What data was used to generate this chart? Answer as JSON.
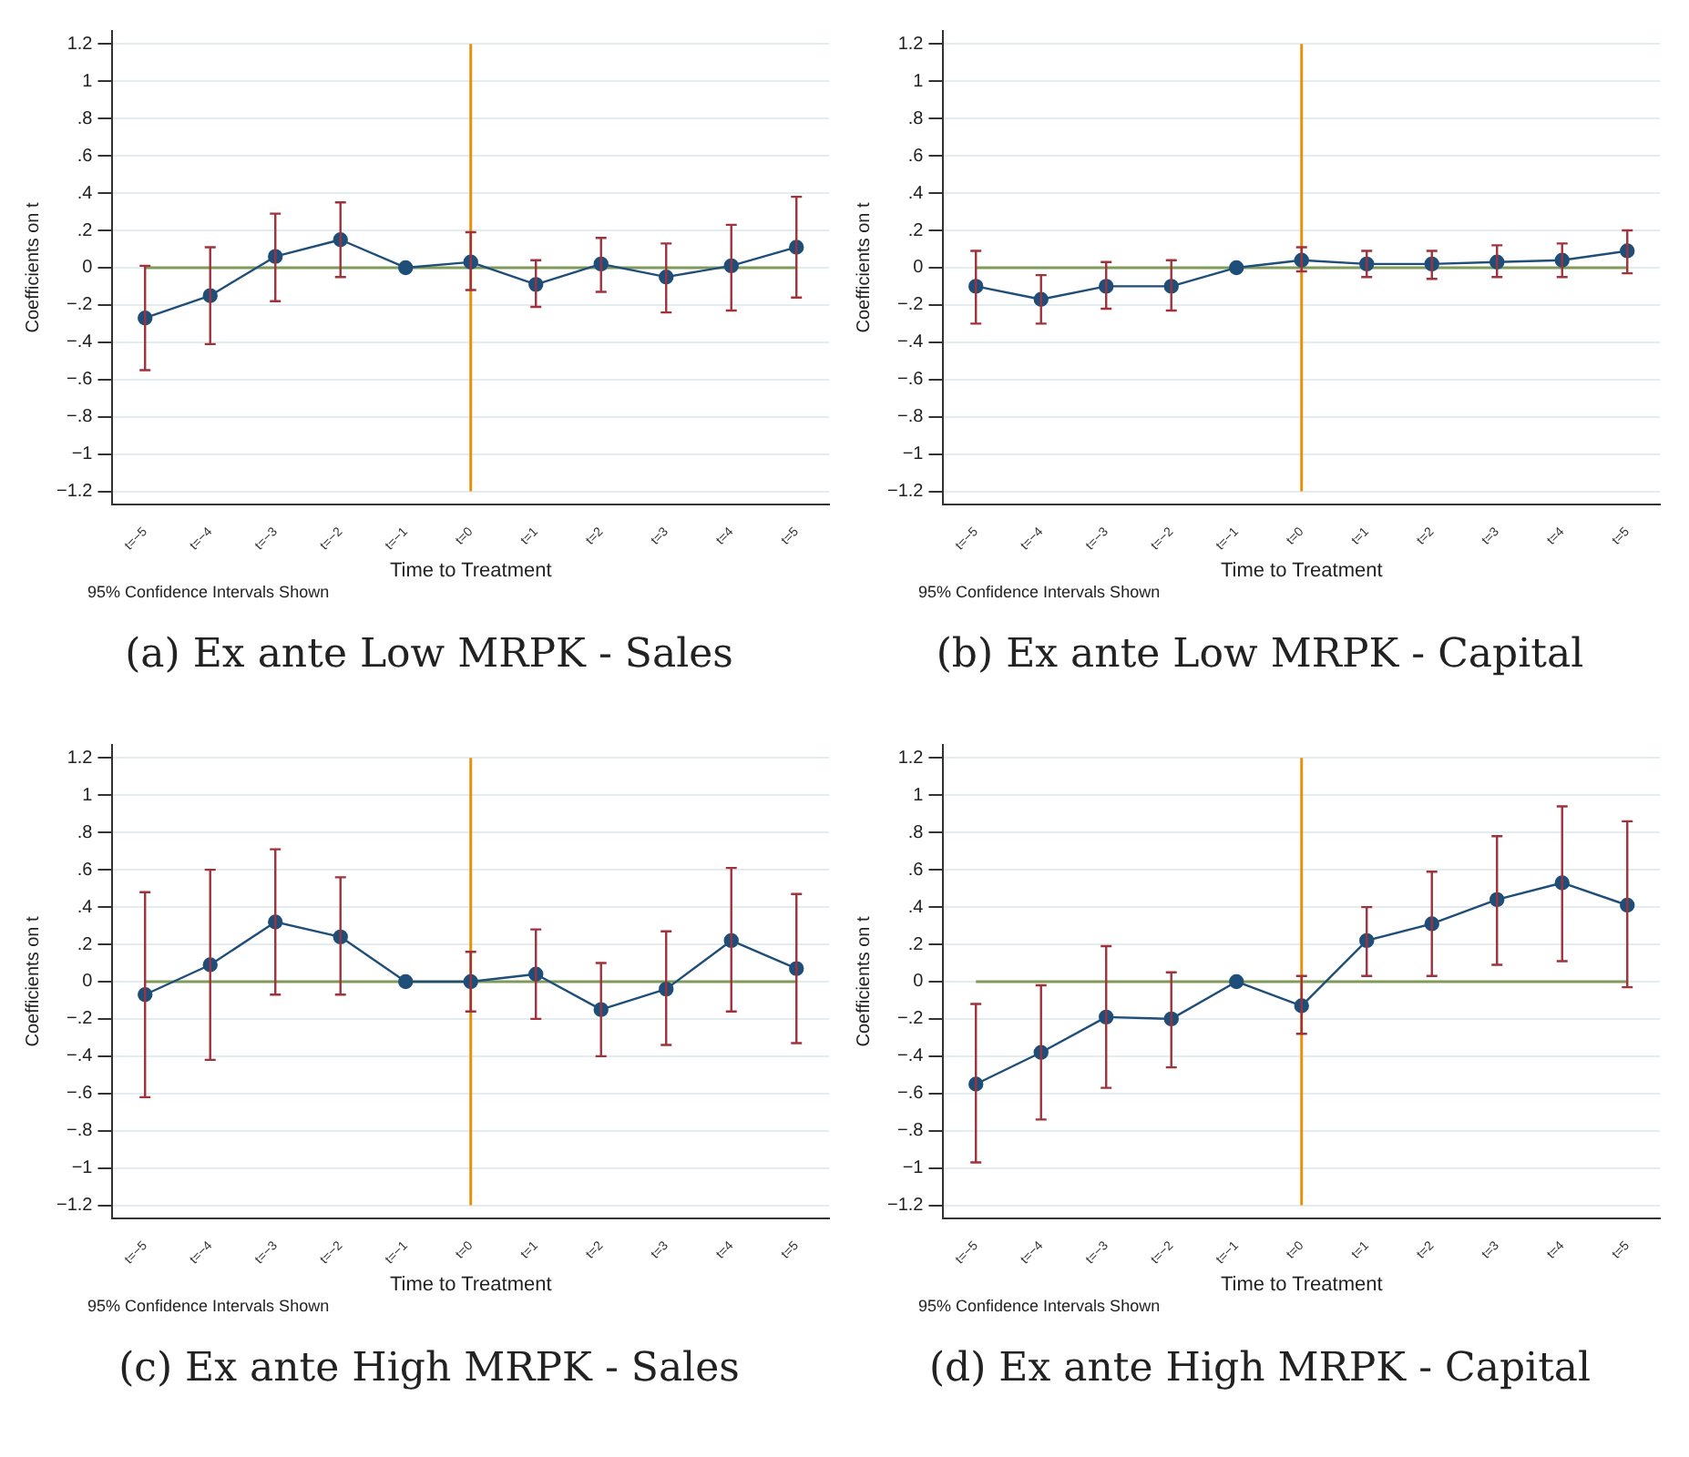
{
  "chart_data": [
    {
      "type": "line",
      "title": "(a) Ex ante Low MRPK - Sales",
      "xlabel": "Time to Treatment",
      "ylabel": "Coefficients on t",
      "annotations": [
        "95% Confidence Intervals Shown"
      ],
      "categories": [
        "t=−5",
        "t=−4",
        "t=−3",
        "t=−2",
        "t=−1",
        "t=0",
        "t=1",
        "t=2",
        "t=3",
        "t=4",
        "t=5"
      ],
      "series": [
        {
          "color": "#1f4e79",
          "values": [
            -0.27,
            -0.15,
            0.06,
            0.15,
            0,
            0.03,
            -0.09,
            0.02,
            -0.05,
            0.01,
            0.11
          ],
          "errors": [
            [
              -0.55,
              0.01
            ],
            [
              -0.41,
              0.11
            ],
            [
              -0.18,
              0.29
            ],
            [
              -0.05,
              0.35
            ],
            null,
            [
              -0.12,
              0.19
            ],
            [
              -0.21,
              0.04
            ],
            [
              -0.13,
              0.16
            ],
            [
              -0.24,
              0.13
            ],
            [
              -0.23,
              0.23
            ],
            [
              -0.16,
              0.38
            ]
          ]
        }
      ],
      "ylim": [
        -1.27,
        1.27
      ],
      "yticks": [
        {
          "value": -1.2,
          "label": "−1.2"
        },
        {
          "value": -1,
          "label": "−1"
        },
        {
          "value": -0.8,
          "label": "−.8"
        },
        {
          "value": -0.6,
          "label": "−.6"
        },
        {
          "value": -0.4,
          "label": "−.4"
        },
        {
          "value": -0.2,
          "label": "−.2"
        },
        0,
        {
          "value": 0.2,
          "label": ".2"
        },
        {
          "value": 0.4,
          "label": ".4"
        },
        {
          "value": 0.6,
          "label": ".6"
        },
        {
          "value": 0.8,
          "label": ".8"
        },
        1,
        1.2
      ],
      "ref_lines": [
        {
          "axis": "y",
          "value": 0,
          "color": "#7f9a5a"
        },
        {
          "axis": "x",
          "value": "t=0",
          "color": "#e8900c"
        }
      ],
      "grid": "y",
      "legend": false,
      "marker": "circle"
    },
    {
      "type": "line",
      "title": "(b) Ex ante Low MRPK - Capital",
      "xlabel": "Time to Treatment",
      "ylabel": "Coefficients on t",
      "annotations": [
        "95% Confidence Intervals Shown"
      ],
      "categories": [
        "t=−5",
        "t=−4",
        "t=−3",
        "t=−2",
        "t=−1",
        "t=0",
        "t=1",
        "t=2",
        "t=3",
        "t=4",
        "t=5"
      ],
      "series": [
        {
          "color": "#1f4e79",
          "values": [
            -0.1,
            -0.17,
            -0.1,
            -0.1,
            0,
            0.04,
            0.02,
            0.02,
            0.03,
            0.04,
            0.09
          ],
          "errors": [
            [
              -0.3,
              0.09
            ],
            [
              -0.3,
              -0.04
            ],
            [
              -0.22,
              0.03
            ],
            [
              -0.23,
              0.04
            ],
            null,
            [
              -0.02,
              0.11
            ],
            [
              -0.05,
              0.09
            ],
            [
              -0.06,
              0.09
            ],
            [
              -0.05,
              0.12
            ],
            [
              -0.05,
              0.13
            ],
            [
              -0.03,
              0.2
            ]
          ]
        }
      ],
      "ylim": [
        -1.27,
        1.27
      ],
      "yticks": [
        {
          "value": -1.2,
          "label": "−1.2"
        },
        {
          "value": -1,
          "label": "−1"
        },
        {
          "value": -0.8,
          "label": "−.8"
        },
        {
          "value": -0.6,
          "label": "−.6"
        },
        {
          "value": -0.4,
          "label": "−.4"
        },
        {
          "value": -0.2,
          "label": "−.2"
        },
        0,
        {
          "value": 0.2,
          "label": ".2"
        },
        {
          "value": 0.4,
          "label": ".4"
        },
        {
          "value": 0.6,
          "label": ".6"
        },
        {
          "value": 0.8,
          "label": ".8"
        },
        1,
        1.2
      ],
      "ref_lines": [
        {
          "axis": "y",
          "value": 0,
          "color": "#7f9a5a"
        },
        {
          "axis": "x",
          "value": "t=0",
          "color": "#e8900c"
        }
      ],
      "grid": "y",
      "legend": false,
      "marker": "circle"
    },
    {
      "type": "line",
      "title": "(c) Ex ante High MRPK - Sales",
      "xlabel": "Time to Treatment",
      "ylabel": "Coefficients on t",
      "annotations": [
        "95% Confidence Intervals Shown"
      ],
      "categories": [
        "t=−5",
        "t=−4",
        "t=−3",
        "t=−2",
        "t=−1",
        "t=0",
        "t=1",
        "t=2",
        "t=3",
        "t=4",
        "t=5"
      ],
      "series": [
        {
          "color": "#1f4e79",
          "values": [
            -0.07,
            0.09,
            0.32,
            0.24,
            0,
            0,
            0.04,
            -0.15,
            -0.04,
            0.22,
            0.07
          ],
          "errors": [
            [
              -0.62,
              0.48
            ],
            [
              -0.42,
              0.6
            ],
            [
              -0.07,
              0.71
            ],
            [
              -0.07,
              0.56
            ],
            null,
            [
              -0.16,
              0.16
            ],
            [
              -0.2,
              0.28
            ],
            [
              -0.4,
              0.1
            ],
            [
              -0.34,
              0.27
            ],
            [
              -0.16,
              0.61
            ],
            [
              -0.33,
              0.47
            ]
          ]
        }
      ],
      "ylim": [
        -1.27,
        1.27
      ],
      "yticks": [
        {
          "value": -1.2,
          "label": "−1.2"
        },
        {
          "value": -1,
          "label": "−1"
        },
        {
          "value": -0.8,
          "label": "−.8"
        },
        {
          "value": -0.6,
          "label": "−.6"
        },
        {
          "value": -0.4,
          "label": "−.4"
        },
        {
          "value": -0.2,
          "label": "−.2"
        },
        0,
        {
          "value": 0.2,
          "label": ".2"
        },
        {
          "value": 0.4,
          "label": ".4"
        },
        {
          "value": 0.6,
          "label": ".6"
        },
        {
          "value": 0.8,
          "label": ".8"
        },
        1,
        1.2
      ],
      "ref_lines": [
        {
          "axis": "y",
          "value": 0,
          "color": "#7f9a5a"
        },
        {
          "axis": "x",
          "value": "t=0",
          "color": "#e8900c"
        }
      ],
      "grid": "y",
      "legend": false,
      "marker": "circle"
    },
    {
      "type": "line",
      "title": "(d) Ex ante High MRPK - Capital",
      "xlabel": "Time to Treatment",
      "ylabel": "Coefficients on t",
      "annotations": [
        "95% Confidence Intervals Shown"
      ],
      "categories": [
        "t=−5",
        "t=−4",
        "t=−3",
        "t=−2",
        "t=−1",
        "t=0",
        "t=1",
        "t=2",
        "t=3",
        "t=4",
        "t=5"
      ],
      "series": [
        {
          "color": "#1f4e79",
          "values": [
            -0.55,
            -0.38,
            -0.19,
            -0.2,
            0,
            -0.13,
            0.22,
            0.31,
            0.44,
            0.53,
            0.41
          ],
          "errors": [
            [
              -0.97,
              -0.12
            ],
            [
              -0.74,
              -0.02
            ],
            [
              -0.57,
              0.19
            ],
            [
              -0.46,
              0.05
            ],
            null,
            [
              -0.28,
              0.03
            ],
            [
              0.03,
              0.4
            ],
            [
              0.03,
              0.59
            ],
            [
              0.09,
              0.78
            ],
            [
              0.11,
              0.94
            ],
            [
              -0.03,
              0.86
            ]
          ]
        }
      ],
      "ylim": [
        -1.27,
        1.27
      ],
      "yticks": [
        {
          "value": -1.2,
          "label": "−1.2"
        },
        {
          "value": -1,
          "label": "−1"
        },
        {
          "value": -0.8,
          "label": "−.8"
        },
        {
          "value": -0.6,
          "label": "−.6"
        },
        {
          "value": -0.4,
          "label": "−.4"
        },
        {
          "value": -0.2,
          "label": "−.2"
        },
        0,
        {
          "value": 0.2,
          "label": ".2"
        },
        {
          "value": 0.4,
          "label": ".4"
        },
        {
          "value": 0.6,
          "label": ".6"
        },
        {
          "value": 0.8,
          "label": ".8"
        },
        1,
        1.2
      ],
      "ref_lines": [
        {
          "axis": "y",
          "value": 0,
          "color": "#7f9a5a"
        },
        {
          "axis": "x",
          "value": "t=0",
          "color": "#e8900c"
        }
      ],
      "grid": "y",
      "legend": false,
      "marker": "circle"
    }
  ]
}
